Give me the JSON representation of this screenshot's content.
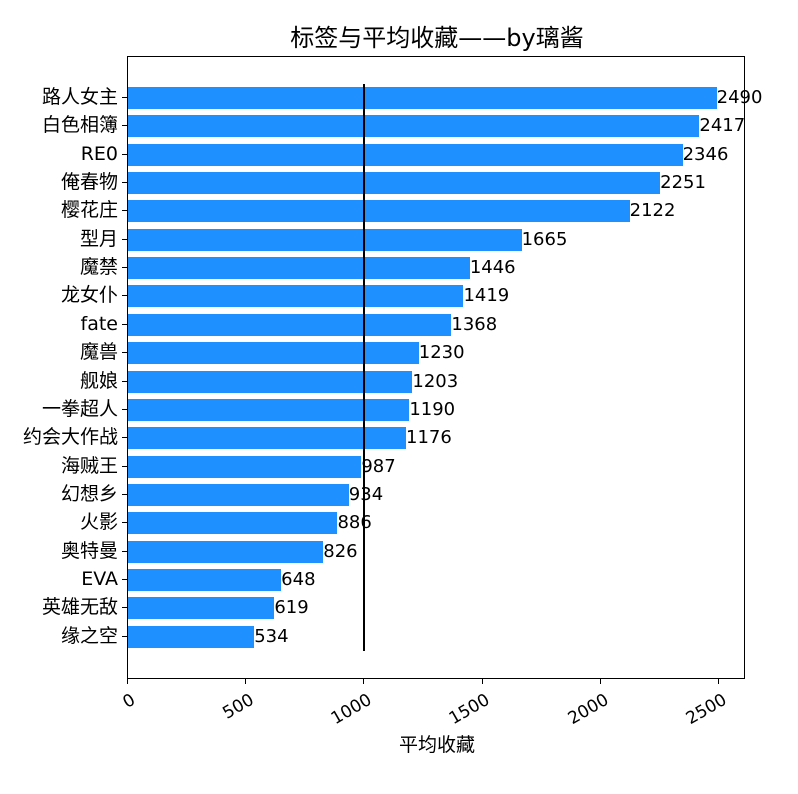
{
  "chart_data": {
    "type": "bar",
    "orientation": "horizontal",
    "title": "标签与平均收藏——by璃酱",
    "xlabel": "平均收藏",
    "ylabel": "",
    "xlim": [
      0,
      2615
    ],
    "xticks": [
      "0",
      "500",
      "1000",
      "1500",
      "2000",
      "2500"
    ],
    "reference_line": {
      "x": 1000,
      "color": "#000000"
    },
    "bar_color": "#1e90ff",
    "grid": false,
    "categories": [
      "路人女主",
      "白色相簿",
      "RE0",
      "俺春物",
      "樱花庄",
      "型月",
      "魔禁",
      "龙女仆",
      "fate",
      "魔兽",
      "舰娘",
      "一拳超人",
      "约会大作战",
      "海贼王",
      "幻想乡",
      "火影",
      "奥特曼",
      "EVA",
      "英雄无敌",
      "缘之空"
    ],
    "values": [
      2490,
      2417,
      2346,
      2251,
      2122,
      1665,
      1446,
      1419,
      1368,
      1230,
      1203,
      1190,
      1176,
      987,
      934,
      886,
      826,
      648,
      619,
      534
    ]
  }
}
